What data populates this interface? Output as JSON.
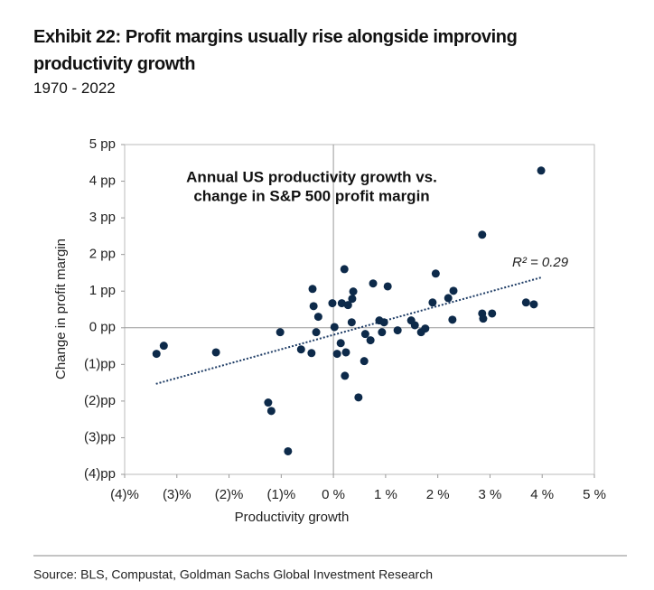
{
  "chart_data": {
    "type": "scatter",
    "title": "Exhibit 22: Profit margins usually rise alongside improving productivity growth",
    "subtitle": "1970 - 2022",
    "annotation_lines": [
      "Annual US productivity growth vs.",
      "change in S&P 500 profit margin"
    ],
    "x_label": "Productivity growth",
    "y_label": "Change in profit margin",
    "source": "Source: BLS, Compustat, Goldman Sachs Global Investment Research",
    "color": "#0d2a4a",
    "x": [
      -3.39,
      -3.25,
      -2.25,
      -1.25,
      -1.19,
      -1.02,
      -0.87,
      -0.62,
      -0.42,
      -0.4,
      -0.38,
      -0.29,
      -0.33,
      -0.02,
      0.02,
      0.07,
      0.14,
      0.16,
      0.21,
      0.24,
      0.22,
      0.28,
      0.35,
      0.36,
      0.38,
      0.48,
      0.61,
      0.59,
      0.71,
      0.76,
      0.88,
      0.93,
      0.97,
      1.04,
      1.23,
      1.49,
      1.56,
      1.68,
      1.76,
      1.9,
      1.96,
      2.2,
      2.3,
      2.28,
      2.85,
      2.85,
      2.87,
      3.04,
      3.69,
      3.84,
      3.98
    ],
    "values": [
      -0.71,
      -0.49,
      -0.67,
      -2.04,
      -2.27,
      -0.12,
      -3.37,
      -0.59,
      -0.69,
      1.06,
      0.59,
      0.3,
      -0.12,
      0.67,
      0.02,
      -0.71,
      -0.42,
      0.67,
      1.6,
      -0.67,
      -1.31,
      0.62,
      0.15,
      0.79,
      0.99,
      -1.9,
      -0.17,
      -0.91,
      -0.34,
      1.21,
      0.2,
      -0.12,
      0.15,
      1.13,
      -0.07,
      0.2,
      0.07,
      -0.12,
      -0.02,
      0.69,
      1.48,
      0.81,
      1.01,
      0.22,
      2.54,
      0.39,
      0.25,
      0.39,
      0.69,
      0.64,
      4.29
    ],
    "trendline": {
      "x": [
        -3.4,
        4.0
      ],
      "y": [
        -1.53,
        1.38
      ],
      "label": "R² = 0.29",
      "color": "#1f3d66"
    },
    "xlim": [
      -4,
      5
    ],
    "xticks": [
      {
        "value": -4,
        "label": "(4)%"
      },
      {
        "value": -3,
        "label": "(3)%"
      },
      {
        "value": -2,
        "label": "(2)%"
      },
      {
        "value": -1,
        "label": "(1)%"
      },
      {
        "value": 0,
        "label": "0 %"
      },
      {
        "value": 1,
        "label": "1 %"
      },
      {
        "value": 2,
        "label": "2 %"
      },
      {
        "value": 3,
        "label": "3 %"
      },
      {
        "value": 4,
        "label": "4 %"
      },
      {
        "value": 5,
        "label": "5 %"
      }
    ],
    "ylim": [
      -4,
      5
    ],
    "yticks": [
      {
        "value": -4,
        "label": "(4)pp"
      },
      {
        "value": -3,
        "label": "(3)pp"
      },
      {
        "value": -2,
        "label": "(2)pp"
      },
      {
        "value": -1,
        "label": "(1)pp"
      },
      {
        "value": 0,
        "label": "0 pp"
      },
      {
        "value": 1,
        "label": "1 pp"
      },
      {
        "value": 2,
        "label": "2 pp"
      },
      {
        "value": 3,
        "label": "3 pp"
      },
      {
        "value": 4,
        "label": "4 pp"
      },
      {
        "value": 5,
        "label": "5 pp"
      }
    ]
  }
}
